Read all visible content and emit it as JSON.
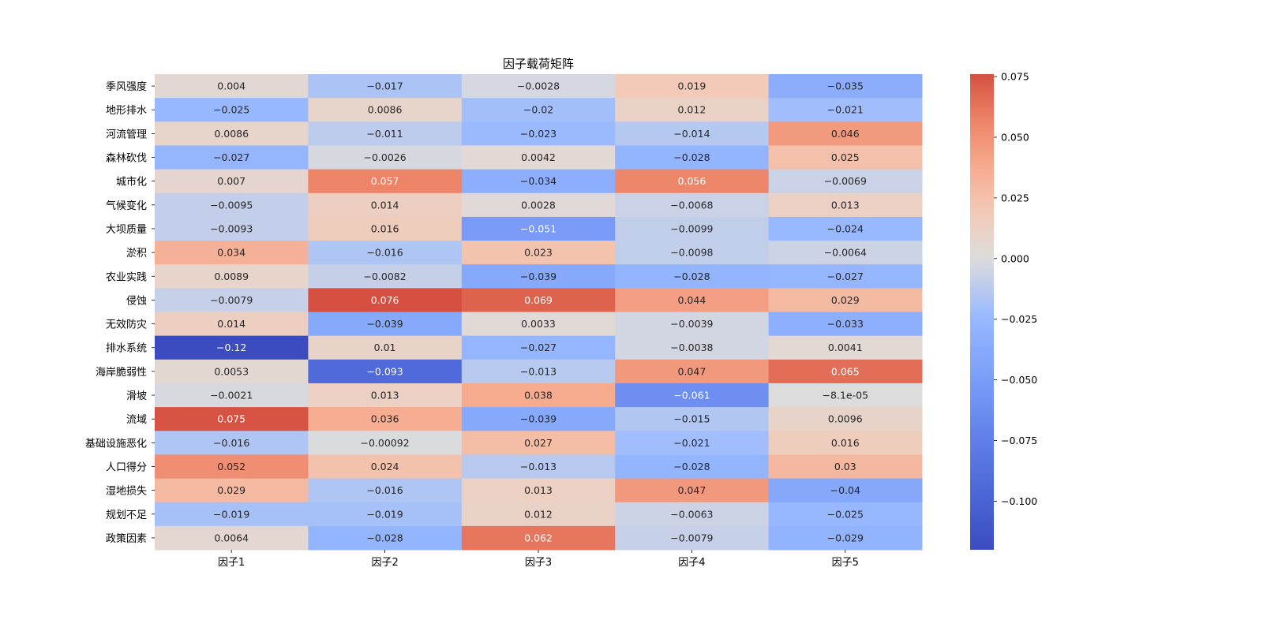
{
  "chart_data": {
    "type": "heatmap",
    "title": "因子载荷矩阵",
    "xlabel": "",
    "ylabel": "",
    "x_categories": [
      "因子1",
      "因子2",
      "因子3",
      "因子4",
      "因子5"
    ],
    "y_categories": [
      "季风强度",
      "地形排水",
      "河流管理",
      "森林砍伐",
      "城市化",
      "气候变化",
      "大坝质量",
      "淤积",
      "农业实践",
      "侵蚀",
      "无效防灾",
      "排水系统",
      "海岸脆弱性",
      "滑坡",
      "流域",
      "基础设施恶化",
      "人口得分",
      "湿地损失",
      "规划不足",
      "政策因素"
    ],
    "values": [
      [
        0.004,
        -0.017,
        -0.0028,
        0.019,
        -0.035
      ],
      [
        -0.025,
        0.0086,
        -0.02,
        0.012,
        -0.021
      ],
      [
        0.0086,
        -0.011,
        -0.023,
        -0.014,
        0.046
      ],
      [
        -0.027,
        -0.0026,
        0.0042,
        -0.028,
        0.025
      ],
      [
        0.007,
        0.057,
        -0.034,
        0.056,
        -0.0069
      ],
      [
        -0.0095,
        0.014,
        0.0028,
        -0.0068,
        0.013
      ],
      [
        -0.0093,
        0.016,
        -0.051,
        -0.0099,
        -0.024
      ],
      [
        0.034,
        -0.016,
        0.023,
        -0.0098,
        -0.0064
      ],
      [
        0.0089,
        -0.0082,
        -0.039,
        -0.028,
        -0.027
      ],
      [
        -0.0079,
        0.076,
        0.069,
        0.044,
        0.029
      ],
      [
        0.014,
        -0.039,
        0.0033,
        -0.0039,
        -0.033
      ],
      [
        -0.12,
        0.01,
        -0.027,
        -0.0038,
        0.0041
      ],
      [
        0.0053,
        -0.093,
        -0.013,
        0.047,
        0.065
      ],
      [
        -0.0021,
        0.013,
        0.038,
        -0.061,
        -8.1e-05
      ],
      [
        0.075,
        0.036,
        -0.039,
        -0.015,
        0.0096
      ],
      [
        -0.016,
        -0.00092,
        0.027,
        -0.021,
        0.016
      ],
      [
        0.052,
        0.024,
        -0.013,
        -0.028,
        0.03
      ],
      [
        0.029,
        -0.016,
        0.013,
        0.047,
        -0.04
      ],
      [
        -0.019,
        -0.019,
        0.012,
        -0.0063,
        -0.025
      ],
      [
        0.0064,
        -0.028,
        0.062,
        -0.0079,
        -0.029
      ]
    ],
    "labels": [
      [
        "0.004",
        "-0.017",
        "-0.0028",
        "0.019",
        "-0.035"
      ],
      [
        "-0.025",
        "0.0086",
        "-0.02",
        "0.012",
        "-0.021"
      ],
      [
        "0.0086",
        "-0.011",
        "-0.023",
        "-0.014",
        "0.046"
      ],
      [
        "-0.027",
        "-0.0026",
        "0.0042",
        "-0.028",
        "0.025"
      ],
      [
        "0.007",
        "0.057",
        "-0.034",
        "0.056",
        "-0.0069"
      ],
      [
        "-0.0095",
        "0.014",
        "0.0028",
        "-0.0068",
        "0.013"
      ],
      [
        "-0.0093",
        "0.016",
        "-0.051",
        "-0.0099",
        "-0.024"
      ],
      [
        "0.034",
        "-0.016",
        "0.023",
        "-0.0098",
        "-0.0064"
      ],
      [
        "0.0089",
        "-0.0082",
        "-0.039",
        "-0.028",
        "-0.027"
      ],
      [
        "-0.0079",
        "0.076",
        "0.069",
        "0.044",
        "0.029"
      ],
      [
        "0.014",
        "-0.039",
        "0.0033",
        "-0.0039",
        "-0.033"
      ],
      [
        "-0.12",
        "0.01",
        "-0.027",
        "-0.0038",
        "0.0041"
      ],
      [
        "0.0053",
        "-0.093",
        "-0.013",
        "0.047",
        "0.065"
      ],
      [
        "-0.0021",
        "0.013",
        "0.038",
        "-0.061",
        "-8.1e-05"
      ],
      [
        "0.075",
        "0.036",
        "-0.039",
        "-0.015",
        "0.0096"
      ],
      [
        "-0.016",
        "-0.00092",
        "0.027",
        "-0.021",
        "0.016"
      ],
      [
        "0.052",
        "0.024",
        "-0.013",
        "-0.028",
        "0.03"
      ],
      [
        "0.029",
        "-0.016",
        "0.013",
        "0.047",
        "-0.04"
      ],
      [
        "-0.019",
        "-0.019",
        "0.012",
        "-0.0063",
        "-0.025"
      ],
      [
        "0.0064",
        "-0.028",
        "0.062",
        "-0.0079",
        "-0.029"
      ]
    ],
    "colormap": "coolwarm",
    "vmin": -0.12,
    "vmax": 0.076,
    "colorbar": {
      "ticks": [
        0.075,
        0.05,
        0.025,
        0.0,
        -0.025,
        -0.05,
        -0.075,
        -0.1
      ],
      "tick_labels": [
        "0.075",
        "0.050",
        "0.025",
        "0.000",
        "−0.025",
        "−0.050",
        "−0.075",
        "−0.100"
      ]
    },
    "colors": {
      "low": "#3b4cc0",
      "mid": "#dddcdc",
      "high": "#ee8468",
      "max": "#b40426"
    },
    "legend": "right"
  }
}
